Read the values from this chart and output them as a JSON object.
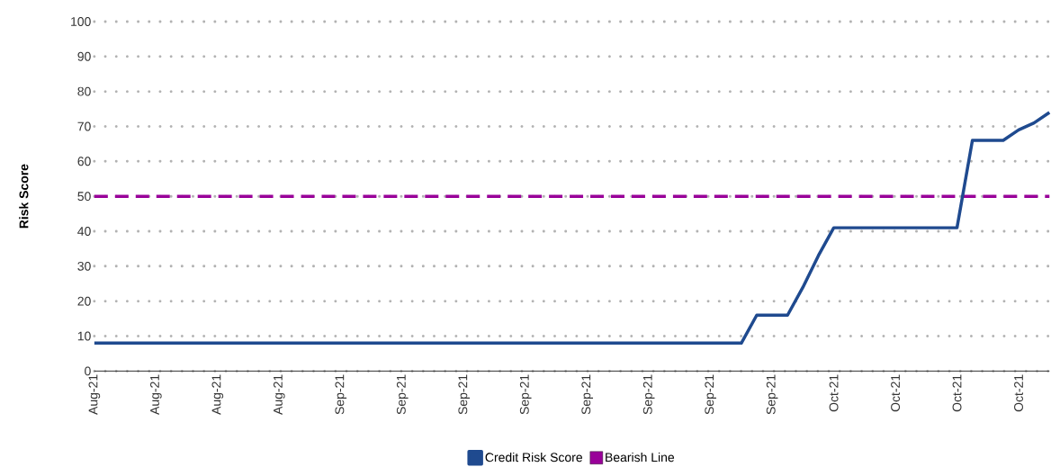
{
  "chart_data": {
    "type": "line",
    "ylabel": "Risk Score",
    "categories": [
      "Aug-21",
      null,
      null,
      null,
      "Aug-21",
      null,
      null,
      null,
      "Aug-21",
      null,
      null,
      null,
      "Aug-21",
      null,
      null,
      null,
      "Sep-21",
      null,
      null,
      null,
      "Sep-21",
      null,
      null,
      null,
      "Sep-21",
      null,
      null,
      null,
      "Sep-21",
      null,
      null,
      null,
      "Sep-21",
      null,
      null,
      null,
      "Sep-21",
      null,
      null,
      null,
      "Sep-21",
      null,
      null,
      null,
      "Sep-21",
      null,
      null,
      null,
      "Oct-21",
      null,
      null,
      null,
      "Oct-21",
      null,
      null,
      null,
      "Oct-21",
      null,
      null,
      null,
      "Oct-21",
      null,
      null
    ],
    "series": [
      {
        "name": "Credit Risk Score",
        "color": "#1f4a8f",
        "values": [
          8,
          8,
          8,
          8,
          8,
          8,
          8,
          8,
          8,
          8,
          8,
          8,
          8,
          8,
          8,
          8,
          8,
          8,
          8,
          8,
          8,
          8,
          8,
          8,
          8,
          8,
          8,
          8,
          8,
          8,
          8,
          8,
          8,
          8,
          8,
          8,
          8,
          8,
          8,
          8,
          8,
          8,
          8,
          16,
          16,
          16,
          24,
          33,
          41,
          41,
          41,
          41,
          41,
          41,
          41,
          41,
          41,
          66,
          66,
          66,
          69,
          71,
          74
        ]
      }
    ],
    "ylim": [
      0,
      100
    ],
    "yticks": [
      0,
      10,
      20,
      30,
      40,
      50,
      60,
      70,
      80,
      90,
      100
    ],
    "ref_lines": [
      {
        "axis": "y",
        "value": 50,
        "label": "Bearish Line",
        "color": "#990099",
        "line_style": "dashed"
      }
    ],
    "grid": "y",
    "legend": "bottom",
    "marker": "none",
    "line_style": "solid"
  }
}
